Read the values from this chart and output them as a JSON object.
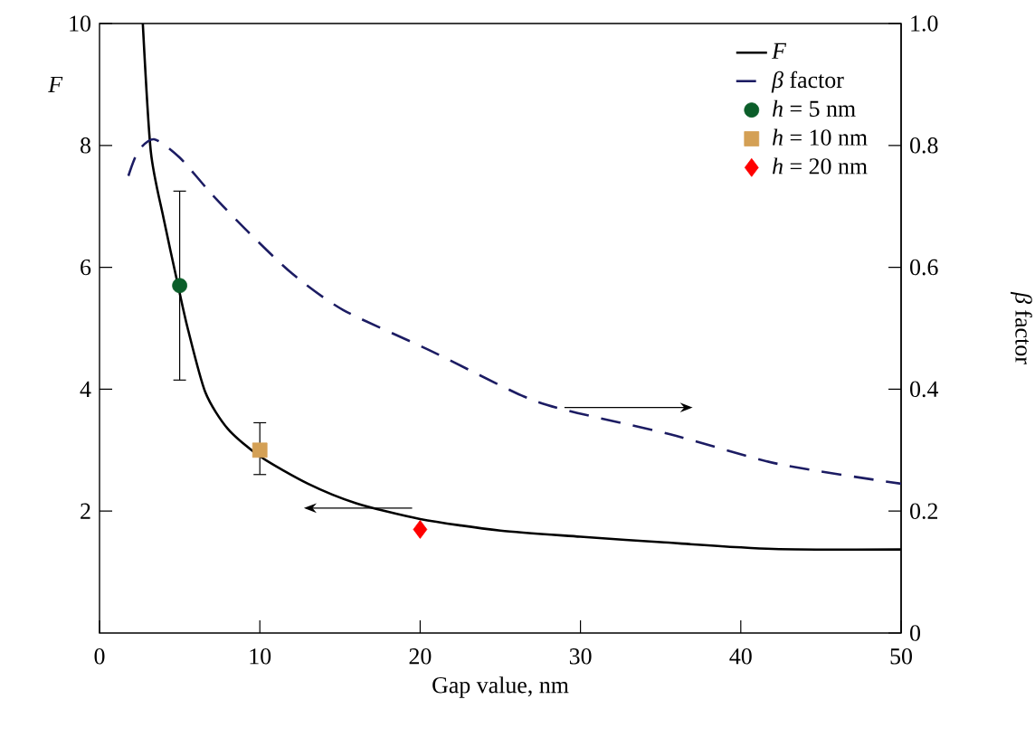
{
  "chart_data": {
    "type": "line",
    "xlabel": "Gap value, nm",
    "ylabel": "*F*",
    "y2label": "*β* factor",
    "xlim": [
      0,
      50
    ],
    "xticks": [
      0,
      10,
      20,
      30,
      40,
      50
    ],
    "ylim": [
      0,
      10
    ],
    "yticks": [
      2,
      4,
      6,
      8,
      10
    ],
    "y2lim": [
      0,
      1
    ],
    "y2ticks": [
      0,
      0.2,
      0.4,
      0.6,
      0.8,
      {
        "value": 1,
        "label": "1.0"
      }
    ],
    "legend": "top right",
    "series": [
      {
        "name": "*F*",
        "color": "#000000",
        "line_style": "solid",
        "marker": "none",
        "x": [
          2.7,
          3.2,
          4,
          4.9,
          5.5,
          6.6,
          8,
          10,
          13,
          16,
          20,
          25,
          30,
          35,
          42,
          50
        ],
        "values": [
          10,
          7.9,
          6.8,
          5.7,
          5.0,
          3.95,
          3.35,
          2.9,
          2.45,
          2.13,
          1.87,
          1.68,
          1.58,
          1.49,
          1.38,
          1.37
        ]
      },
      {
        "name": "*β* factor",
        "axis": "y2",
        "color": "#1c1c63",
        "line_style": "dashed",
        "marker": "none",
        "x": [
          1.8,
          2.4,
          3.4,
          5,
          7,
          9.2,
          12,
          15.2,
          20.5,
          26.3,
          29.2,
          35.6,
          42.4,
          50
        ],
        "values": [
          0.75,
          0.79,
          0.81,
          0.78,
          0.72,
          0.66,
          0.59,
          0.53,
          0.465,
          0.39,
          0.365,
          0.326,
          0.277,
          0.245
        ]
      },
      {
        "name": "*h* = 5 nm",
        "type": "scatter",
        "color": "#0b5e2a",
        "marker": "circle",
        "x": [
          5
        ],
        "values": [
          5.7
        ],
        "errors": [
          [
            4.15,
            7.25
          ]
        ]
      },
      {
        "name": "*h* = 10 nm",
        "type": "scatter",
        "color": "#d4a055",
        "marker": "square",
        "x": [
          10
        ],
        "values": [
          3.0
        ],
        "errors": [
          [
            2.6,
            3.45
          ]
        ]
      },
      {
        "name": "*h* = 20 nm",
        "type": "scatter",
        "color": "#ff0000",
        "marker": "diamond",
        "x": [
          20
        ],
        "values": [
          1.7
        ]
      }
    ]
  }
}
